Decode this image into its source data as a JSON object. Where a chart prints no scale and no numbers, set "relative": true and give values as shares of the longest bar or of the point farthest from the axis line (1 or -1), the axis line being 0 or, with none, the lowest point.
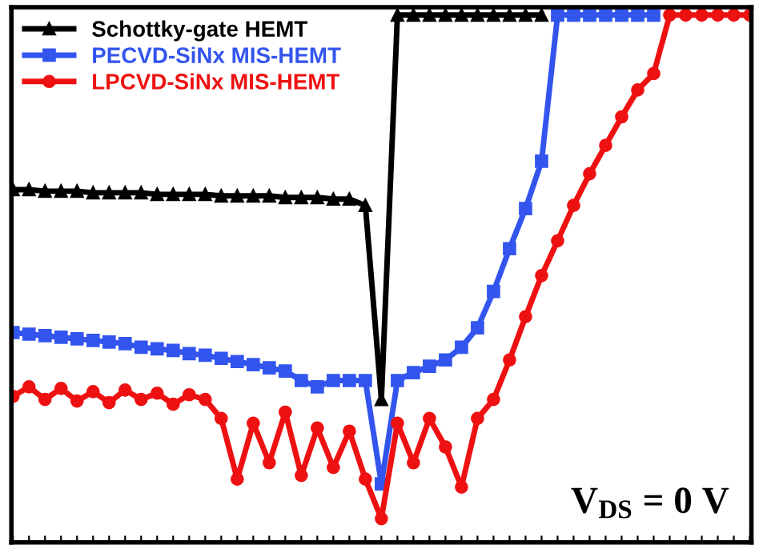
{
  "chart_data": {
    "type": "line",
    "relative": true,
    "grid": false,
    "legend": "top left",
    "line_style": "solid",
    "categories": [
      null,
      null,
      null,
      null,
      null,
      null,
      null,
      null,
      null,
      null,
      null,
      null,
      null,
      null,
      null,
      null,
      null,
      null,
      null,
      null,
      null,
      null,
      null,
      null,
      null,
      null,
      null,
      null,
      null,
      null,
      null,
      null,
      null,
      null,
      null,
      null,
      null,
      null,
      null,
      null,
      null,
      null,
      null,
      null,
      null,
      null,
      null
    ],
    "annotations": [
      "V$_{DS}$ = 0 V"
    ],
    "series": [
      {
        "name": "Schottky-gate HEMT",
        "color": "#000000",
        "marker": "triangle",
        "values": [
          0.669,
          0.669,
          0.666,
          0.666,
          0.666,
          0.663,
          0.663,
          0.663,
          0.663,
          0.66,
          0.66,
          0.66,
          0.66,
          0.657,
          0.657,
          0.657,
          0.657,
          0.654,
          0.654,
          0.654,
          0.651,
          0.651,
          0.639,
          0.271,
          1,
          1,
          1,
          1,
          1,
          1,
          1,
          1,
          1,
          1,
          null,
          null,
          null,
          null,
          null,
          null,
          null,
          null,
          null,
          null,
          null,
          null,
          null
        ]
      },
      {
        "name": "PECVD-SiNx MIS-HEMT",
        "color": "#3355ee",
        "marker": "square",
        "values": [
          0.398,
          0.395,
          0.392,
          0.389,
          0.386,
          0.383,
          0.38,
          0.377,
          0.37,
          0.367,
          0.364,
          0.358,
          0.355,
          0.349,
          0.343,
          0.337,
          0.331,
          0.325,
          0.307,
          0.295,
          0.307,
          0.307,
          0.307,
          0.111,
          0.307,
          0.322,
          0.334,
          0.346,
          0.37,
          0.407,
          0.476,
          0.557,
          0.633,
          0.723,
          1,
          1,
          1,
          1,
          1,
          1,
          1,
          null,
          null,
          null,
          null,
          null,
          null
        ]
      },
      {
        "name": "LPCVD-SiNx MIS-HEMT",
        "color": "#ee1111",
        "marker": "circle",
        "values": [
          0.277,
          0.295,
          0.271,
          0.292,
          0.268,
          0.286,
          0.265,
          0.289,
          0.271,
          0.283,
          0.262,
          0.28,
          0.271,
          0.235,
          0.12,
          0.226,
          0.151,
          0.247,
          0.127,
          0.217,
          0.142,
          0.211,
          0.12,
          0.045,
          0.226,
          0.151,
          0.235,
          0.181,
          0.105,
          0.235,
          0.271,
          0.346,
          0.428,
          0.506,
          0.572,
          0.639,
          0.699,
          0.753,
          0.807,
          0.858,
          0.889,
          1,
          1,
          1,
          1,
          1,
          1
        ]
      }
    ]
  }
}
